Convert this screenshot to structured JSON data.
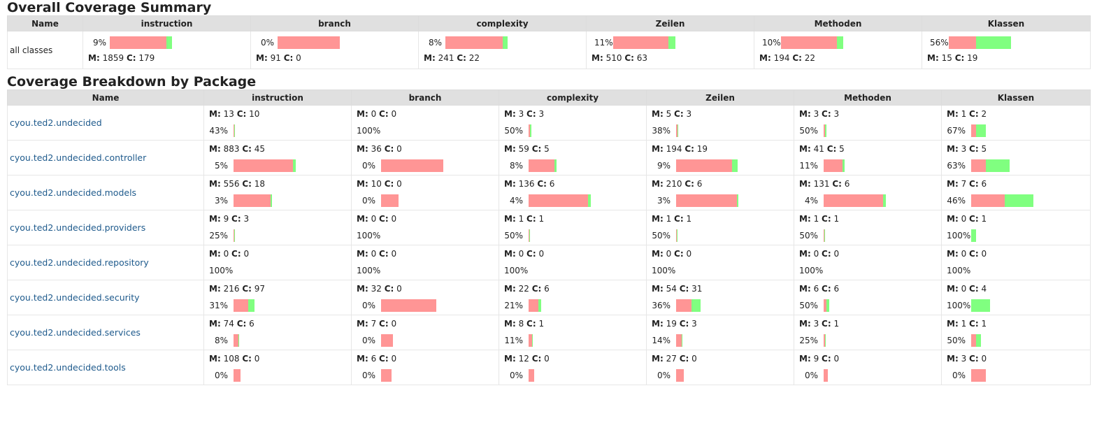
{
  "summary": {
    "title": "Overall Coverage Summary",
    "name_header": "Name",
    "row_label": "all classes",
    "metrics": [
      {
        "header": "instruction",
        "pct": "9%",
        "m_label": "M:",
        "m": "1859",
        "c_label": "C:",
        "c": "179",
        "covered_fraction": 0.09
      },
      {
        "header": "branch",
        "pct": "0%",
        "m_label": "M:",
        "m": "91",
        "c_label": "C:",
        "c": "0",
        "covered_fraction": 0.0
      },
      {
        "header": "complexity",
        "pct": "8%",
        "m_label": "M:",
        "m": "241",
        "c_label": "C:",
        "c": "22",
        "covered_fraction": 0.08
      },
      {
        "header": "Zeilen",
        "pct": "11%",
        "m_label": "M:",
        "m": "510",
        "c_label": "C:",
        "c": "63",
        "covered_fraction": 0.11
      },
      {
        "header": "Methoden",
        "pct": "10%",
        "m_label": "M:",
        "m": "194",
        "c_label": "C:",
        "c": "22",
        "covered_fraction": 0.1
      },
      {
        "header": "Klassen",
        "pct": "56%",
        "m_label": "M:",
        "m": "15",
        "c_label": "C:",
        "c": "19",
        "covered_fraction": 0.56
      }
    ]
  },
  "packages": {
    "title": "Coverage Breakdown by Package",
    "headers": [
      "Name",
      "instruction",
      "branch",
      "complexity",
      "Zeilen",
      "Methoden",
      "Klassen"
    ],
    "rows": [
      {
        "name": "cyou.ted2.undecided",
        "cells": [
          {
            "m": "13",
            "c": "10",
            "pct": "43%"
          },
          {
            "m": "0",
            "c": "0",
            "pct": "100%"
          },
          {
            "m": "3",
            "c": "3",
            "pct": "50%"
          },
          {
            "m": "5",
            "c": "3",
            "pct": "38%"
          },
          {
            "m": "3",
            "c": "3",
            "pct": "50%"
          },
          {
            "m": "1",
            "c": "2",
            "pct": "67%"
          }
        ]
      },
      {
        "name": "cyou.ted2.undecided.controller",
        "cells": [
          {
            "m": "883",
            "c": "45",
            "pct": "5%"
          },
          {
            "m": "36",
            "c": "0",
            "pct": "0%"
          },
          {
            "m": "59",
            "c": "5",
            "pct": "8%"
          },
          {
            "m": "194",
            "c": "19",
            "pct": "9%"
          },
          {
            "m": "41",
            "c": "5",
            "pct": "11%"
          },
          {
            "m": "3",
            "c": "5",
            "pct": "63%"
          }
        ]
      },
      {
        "name": "cyou.ted2.undecided.models",
        "cells": [
          {
            "m": "556",
            "c": "18",
            "pct": "3%"
          },
          {
            "m": "10",
            "c": "0",
            "pct": "0%"
          },
          {
            "m": "136",
            "c": "6",
            "pct": "4%"
          },
          {
            "m": "210",
            "c": "6",
            "pct": "3%"
          },
          {
            "m": "131",
            "c": "6",
            "pct": "4%"
          },
          {
            "m": "7",
            "c": "6",
            "pct": "46%"
          }
        ]
      },
      {
        "name": "cyou.ted2.undecided.providers",
        "cells": [
          {
            "m": "9",
            "c": "3",
            "pct": "25%"
          },
          {
            "m": "0",
            "c": "0",
            "pct": "100%"
          },
          {
            "m": "1",
            "c": "1",
            "pct": "50%"
          },
          {
            "m": "1",
            "c": "1",
            "pct": "50%"
          },
          {
            "m": "1",
            "c": "1",
            "pct": "50%"
          },
          {
            "m": "0",
            "c": "1",
            "pct": "100%"
          }
        ]
      },
      {
        "name": "cyou.ted2.undecided.repository",
        "cells": [
          {
            "m": "0",
            "c": "0",
            "pct": "100%"
          },
          {
            "m": "0",
            "c": "0",
            "pct": "100%"
          },
          {
            "m": "0",
            "c": "0",
            "pct": "100%"
          },
          {
            "m": "0",
            "c": "0",
            "pct": "100%"
          },
          {
            "m": "0",
            "c": "0",
            "pct": "100%"
          },
          {
            "m": "0",
            "c": "0",
            "pct": "100%"
          }
        ]
      },
      {
        "name": "cyou.ted2.undecided.security",
        "cells": [
          {
            "m": "216",
            "c": "97",
            "pct": "31%"
          },
          {
            "m": "32",
            "c": "0",
            "pct": "0%"
          },
          {
            "m": "22",
            "c": "6",
            "pct": "21%"
          },
          {
            "m": "54",
            "c": "31",
            "pct": "36%"
          },
          {
            "m": "6",
            "c": "6",
            "pct": "50%"
          },
          {
            "m": "0",
            "c": "4",
            "pct": "100%"
          }
        ]
      },
      {
        "name": "cyou.ted2.undecided.services",
        "cells": [
          {
            "m": "74",
            "c": "6",
            "pct": "8%"
          },
          {
            "m": "7",
            "c": "0",
            "pct": "0%"
          },
          {
            "m": "8",
            "c": "1",
            "pct": "11%"
          },
          {
            "m": "19",
            "c": "3",
            "pct": "14%"
          },
          {
            "m": "3",
            "c": "1",
            "pct": "25%"
          },
          {
            "m": "1",
            "c": "1",
            "pct": "50%"
          }
        ]
      },
      {
        "name": "cyou.ted2.undecided.tools",
        "cells": [
          {
            "m": "108",
            "c": "0",
            "pct": "0%"
          },
          {
            "m": "6",
            "c": "0",
            "pct": "0%"
          },
          {
            "m": "12",
            "c": "0",
            "pct": "0%"
          },
          {
            "m": "27",
            "c": "0",
            "pct": "0%"
          },
          {
            "m": "9",
            "c": "0",
            "pct": "0%"
          },
          {
            "m": "3",
            "c": "0",
            "pct": "0%"
          }
        ]
      }
    ]
  },
  "labels": {
    "missed": "M:",
    "covered": "C:"
  },
  "colors": {
    "missed": "#ff9595",
    "covered": "#80ff80",
    "header_bg": "#e0e0e0",
    "link": "#1e5a8c"
  }
}
